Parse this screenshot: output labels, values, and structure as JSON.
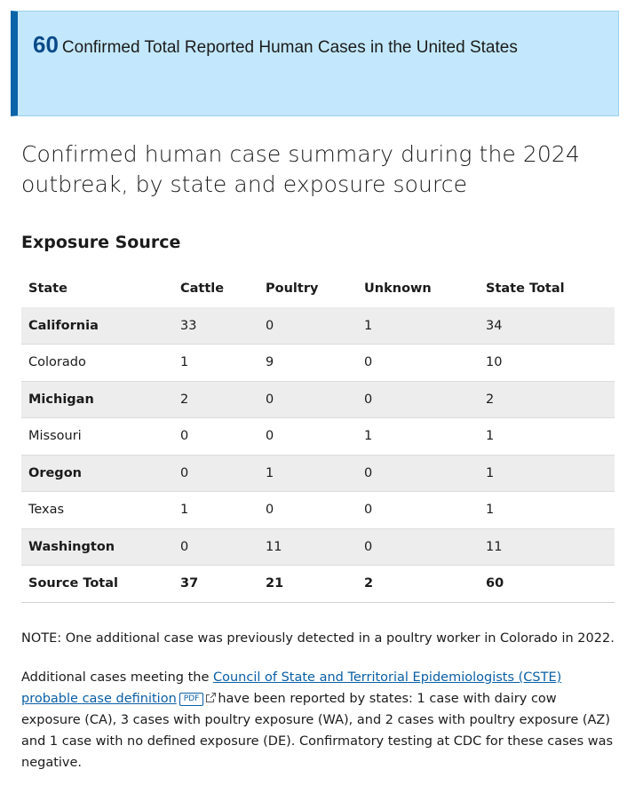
{
  "callout": {
    "count": "60",
    "text": "Confirmed Total Reported Human Cases in the United States"
  },
  "heading": "Confirmed human case summary during the 2024 outbreak, by state and exposure source",
  "subheading": "Exposure Source",
  "table": {
    "headers": [
      "State",
      "Cattle",
      "Poultry",
      "Unknown",
      "State Total"
    ],
    "rows": [
      [
        "California",
        "33",
        "0",
        "1",
        "34"
      ],
      [
        "Colorado",
        "1",
        "9",
        "0",
        "10"
      ],
      [
        "Michigan",
        "2",
        "0",
        "0",
        "2"
      ],
      [
        "Missouri",
        "0",
        "0",
        "1",
        "1"
      ],
      [
        "Oregon",
        "0",
        "1",
        "0",
        "1"
      ],
      [
        "Texas",
        "1",
        "0",
        "0",
        "1"
      ],
      [
        "Washington",
        "0",
        "11",
        "0",
        "11"
      ]
    ],
    "total": [
      "Source Total",
      "37",
      "21",
      "2",
      "60"
    ]
  },
  "note": "NOTE: One additional case was previously detected in a poultry worker in Colorado in 2022.",
  "paragraph": {
    "before_link": "Additional cases meeting the ",
    "link_text": "Council of State and Territorial Epidemiologists (CSTE) probable case definition",
    "pdf_badge": "PDF",
    "external_icon": "external-link-icon",
    "after_link": "have been reported by states: 1 case with dairy cow exposure (CA), 3 cases with poultry exposure (WA), and 2 cases with poultry exposure (AZ) and 1 case with no defined exposure (DE). Confirmatory testing at CDC for these cases was negative."
  },
  "colors": {
    "callout_bg": "#c3e8fd",
    "callout_accent": "#0b63a8",
    "callout_number": "#0b4a8a",
    "link": "#0b5fa5",
    "row_shade": "#ededed"
  }
}
